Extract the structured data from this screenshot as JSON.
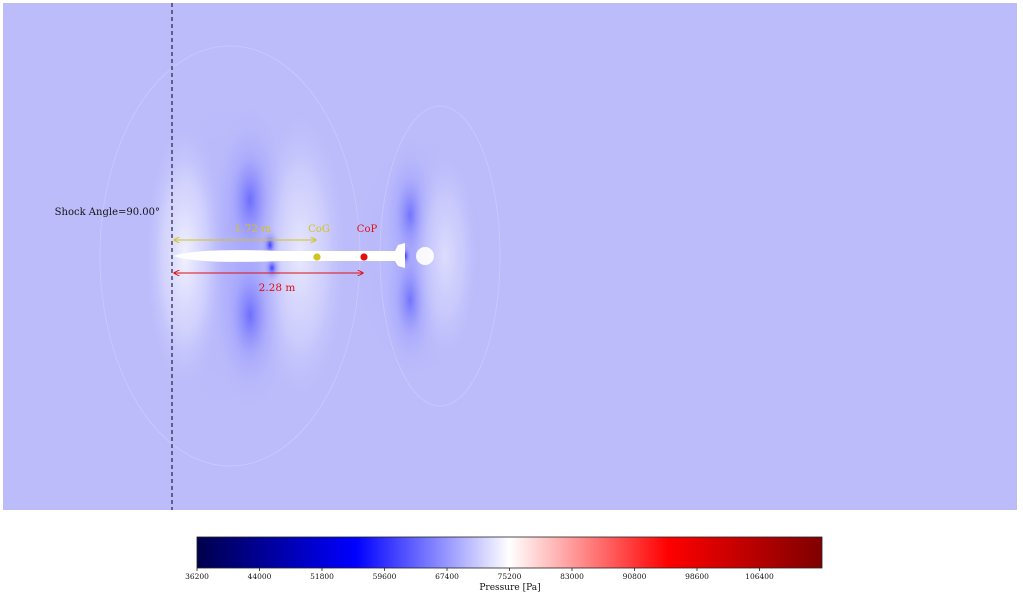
{
  "chart_data": {
    "type": "heatmap",
    "title": "",
    "field": "pressure",
    "units_label": "Pressure [Pa]",
    "colormap": "bwr",
    "range": [
      36200,
      114200
    ],
    "background_level": 67400,
    "colorbar": {
      "ticks": [
        36200,
        44000,
        51800,
        59600,
        67400,
        75200,
        83000,
        90800,
        98600,
        106400
      ],
      "tick_labels": [
        "36200",
        "44000",
        "51800",
        "59600",
        "67400",
        "75200",
        "83000",
        "90800",
        "98600",
        "106400"
      ],
      "stops": [
        {
          "value": 36200,
          "color": "#00004c"
        },
        {
          "value": 56000,
          "color": "#0000ff"
        },
        {
          "value": 75200,
          "color": "#ffffff"
        },
        {
          "value": 95000,
          "color": "#ff0000"
        },
        {
          "value": 114200,
          "color": "#7f0000"
        }
      ],
      "placement": "bottom"
    },
    "annotations": {
      "shock_angle": "Shock Angle=90.00°",
      "cog_label": "CoG",
      "cop_label": "CoP",
      "cog_distance": "1.72 m",
      "cop_distance": "2.28 m"
    },
    "distances_m": {
      "cog": 1.72,
      "cop": 2.28
    },
    "colors": {
      "cog": "#d4c21e",
      "cop": "#e01010",
      "shock_line": "#222244",
      "rocket": "#ffffff",
      "field_background": "#bcbcfb"
    }
  }
}
